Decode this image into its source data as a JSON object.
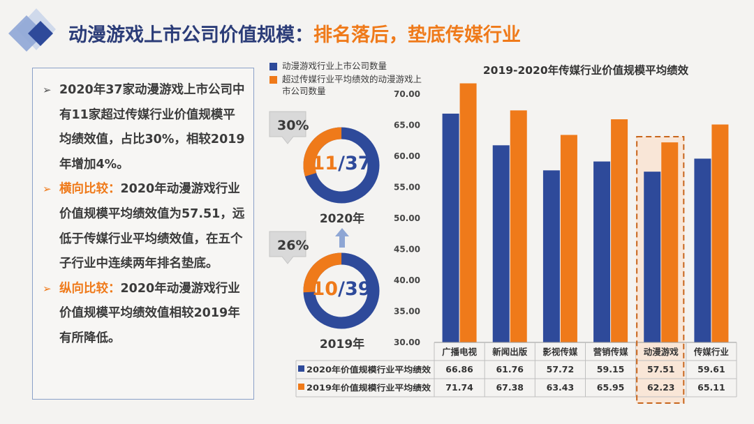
{
  "title": {
    "part1": "动漫游戏上市公司价值规模：",
    "part2": "排名落后，垫底传媒行业"
  },
  "text_panel": {
    "p1": "2020年37家动漫游戏上市公司中有11家超过传媒行业价值规模平均绩效值，占比30%，相较2019年增加4%。",
    "p2_head": "横向比较：",
    "p2_body": "2020年动漫游戏行业价值规模平均绩效值为57.51，远低于传媒行业平均绩效值，在五个子行业中连续两年排名垫底。",
    "p3_head": "纵向比较：",
    "p3_body": "2020年动漫游戏行业价值规模平均绩效值相较2019年有所降低。",
    "marker": "➢"
  },
  "donut_legend": {
    "total": "动漫游戏行业上市公司数量",
    "exceed": "超过传媒行业平均绩效的动漫游戏上市公司数量"
  },
  "donuts": [
    {
      "year": "2020年",
      "percent_label": "30%",
      "num": "11",
      "sep": "/",
      "den": "37",
      "exceed": 11,
      "total": 37
    },
    {
      "year": "2019年",
      "percent_label": "26%",
      "num": "10",
      "sep": "/",
      "den": "39",
      "exceed": 10,
      "total": 39
    }
  ],
  "colors": {
    "blue": "#2e4a9a",
    "orange": "#ef7a1a",
    "title_blue": "#2b3c78",
    "highlight": "#f9e3d2"
  },
  "chart_data": {
    "type": "bar",
    "title": "2019-2020年传媒行业价值规模平均绩效",
    "categories": [
      "广播电视",
      "新闻出版",
      "影视传媒",
      "营销传媒",
      "动漫游戏",
      "传媒行业"
    ],
    "series": [
      {
        "name": "2020年价值规模行业平均绩效",
        "values": [
          66.86,
          61.76,
          57.72,
          59.15,
          57.51,
          59.61
        ],
        "value_labels": [
          "66.86",
          "61.76",
          "57.72",
          "59.15",
          "57.51",
          "59.61"
        ],
        "color": "#2e4a9a"
      },
      {
        "name": "2019年价值规模行业平均绩效",
        "values": [
          71.74,
          67.38,
          63.43,
          65.95,
          62.23,
          65.11
        ],
        "value_labels": [
          "71.74",
          "67.38",
          "63.43",
          "65.95",
          "62.23",
          "65.11"
        ],
        "color": "#ef7a1a"
      }
    ],
    "ylim": [
      30,
      70
    ],
    "yticks": [
      30,
      35,
      40,
      45,
      50,
      55,
      60,
      65,
      70
    ],
    "ytick_labels": [
      "30.00",
      "35.00",
      "40.00",
      "45.00",
      "50.00",
      "55.00",
      "60.00",
      "65.00",
      "70.00"
    ],
    "highlight_category": "动漫游戏",
    "grid": false,
    "legend": "table-below"
  }
}
